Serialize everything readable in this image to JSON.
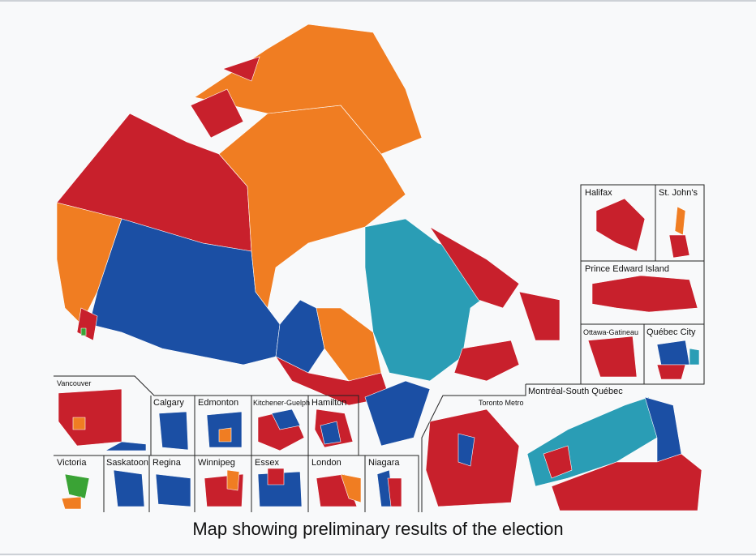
{
  "map": {
    "insets": [
      "Halifax",
      "St. John's",
      "Prince Edward Island",
      "Ottawa-Gatineau",
      "Québec City",
      "Montréal-South Québec",
      "Toronto Metro",
      "Vancouver",
      "Calgary",
      "Edmonton",
      "Kitchener-Guelph",
      "Hamilton",
      "Victoria",
      "Saskatoon",
      "Regina",
      "Winnipeg",
      "Essex",
      "London",
      "Niagara"
    ],
    "caption": "Map showing preliminary results of the election"
  }
}
